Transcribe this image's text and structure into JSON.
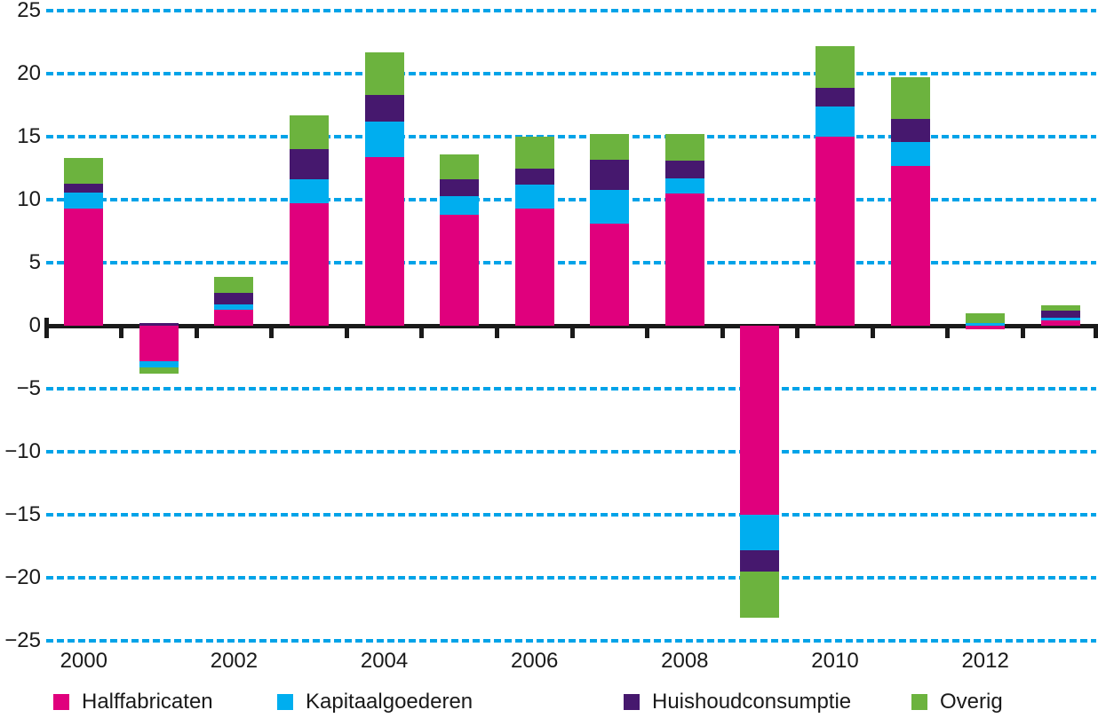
{
  "chart_data": {
    "type": "bar",
    "stacked": true,
    "orientation": "vertical",
    "x": [
      2000,
      2001,
      2002,
      2003,
      2004,
      2005,
      2006,
      2007,
      2008,
      2009,
      2010,
      2011,
      2012,
      2013
    ],
    "x_tick_labels": [
      "2000",
      "2002",
      "2004",
      "2006",
      "2008",
      "2010",
      "2012"
    ],
    "series": [
      {
        "name": "Halffabricaten",
        "color": "#e0007d",
        "values": [
          9.3,
          -2.8,
          1.3,
          9.7,
          13.4,
          8.8,
          9.3,
          8.1,
          10.5,
          -15.0,
          15.0,
          12.7,
          -0.3,
          0.4
        ]
      },
      {
        "name": "Kapitaalgoederen",
        "color": "#00aeef",
        "values": [
          1.3,
          -0.5,
          0.4,
          1.9,
          2.8,
          1.5,
          1.9,
          2.7,
          1.2,
          -2.8,
          2.4,
          1.9,
          0.2,
          0.2
        ]
      },
      {
        "name": "Huishoudconsumptie",
        "color": "#46186e",
        "values": [
          0.7,
          0.2,
          0.9,
          2.4,
          2.1,
          1.3,
          1.3,
          2.4,
          1.4,
          -1.7,
          1.5,
          1.8,
          0.0,
          0.6
        ]
      },
      {
        "name": "Overig",
        "color": "#6cb33e",
        "values": [
          2.0,
          -0.5,
          1.3,
          2.7,
          3.4,
          2.0,
          2.5,
          2.0,
          2.1,
          -3.7,
          3.3,
          3.3,
          0.8,
          0.4
        ]
      }
    ],
    "ylim": [
      -25,
      25
    ],
    "y_ticks": [
      25,
      20,
      15,
      10,
      5,
      0,
      -5,
      -10,
      -15,
      -20,
      -25
    ],
    "grid": "horizontal dotted, at every 5 units except 0",
    "legend_position": "bottom",
    "title": "",
    "xlabel": "",
    "ylabel": ""
  },
  "legend": {
    "items": [
      {
        "label": "Halffabricaten"
      },
      {
        "label": "Kapitaalgoederen"
      },
      {
        "label": "Huishoudconsumptie"
      },
      {
        "label": "Overig"
      }
    ]
  },
  "colors": {
    "grid": "#00a3e8",
    "axis": "#1a1a1a",
    "text": "#1a1a1a",
    "background": "#ffffff"
  }
}
